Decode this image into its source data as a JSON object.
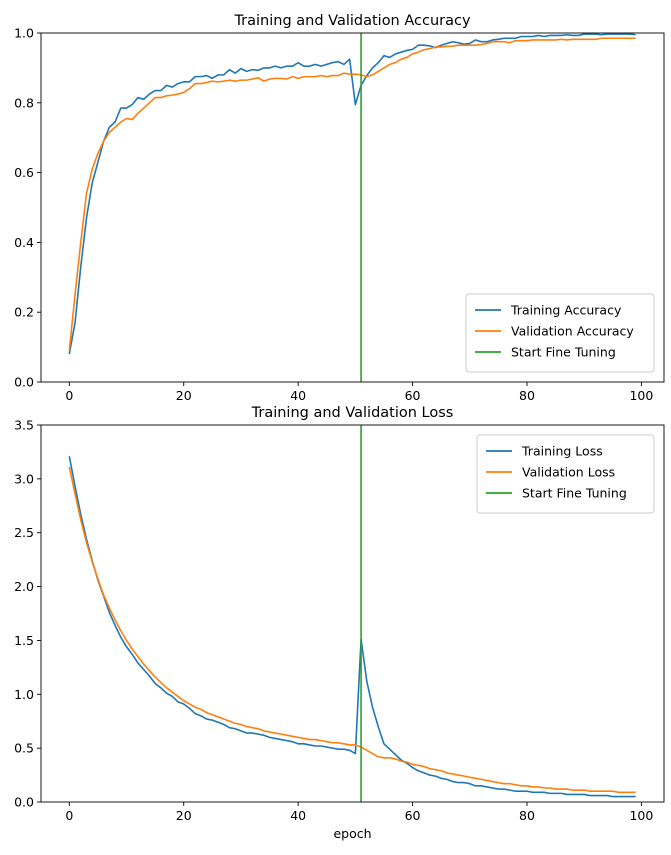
{
  "chart_data": [
    {
      "type": "line",
      "title": "Training and Validation Accuracy",
      "xlabel": "",
      "ylabel": "",
      "xlim": [
        -4.95,
        103.95
      ],
      "ylim": [
        0,
        1
      ],
      "xticks": [
        0,
        20,
        40,
        60,
        80,
        100
      ],
      "yticks": [
        0.0,
        0.2,
        0.4,
        0.6,
        0.8,
        1.0
      ],
      "ytick_labels": [
        "0.0",
        "0.2",
        "0.4",
        "0.6",
        "0.8",
        "1.0"
      ],
      "grid": false,
      "legend": "lower-right",
      "vline": {
        "name": "Start Fine Tuning",
        "x": 51,
        "color": "#2ca02c"
      },
      "series": [
        {
          "name": "Training Accuracy",
          "color": "#1f77b4",
          "values": [
            0.08,
            0.17,
            0.33,
            0.47,
            0.57,
            0.63,
            0.69,
            0.73,
            0.745,
            0.785,
            0.785,
            0.795,
            0.815,
            0.81,
            0.825,
            0.835,
            0.835,
            0.85,
            0.845,
            0.855,
            0.86,
            0.86,
            0.875,
            0.875,
            0.878,
            0.87,
            0.88,
            0.88,
            0.895,
            0.885,
            0.898,
            0.89,
            0.895,
            0.893,
            0.9,
            0.9,
            0.905,
            0.9,
            0.905,
            0.905,
            0.915,
            0.905,
            0.905,
            0.91,
            0.905,
            0.91,
            0.915,
            0.918,
            0.91,
            0.925,
            0.795,
            0.85,
            0.878,
            0.9,
            0.915,
            0.935,
            0.93,
            0.94,
            0.945,
            0.95,
            0.953,
            0.965,
            0.965,
            0.963,
            0.958,
            0.965,
            0.97,
            0.975,
            0.972,
            0.968,
            0.97,
            0.98,
            0.975,
            0.975,
            0.98,
            0.982,
            0.985,
            0.985,
            0.985,
            0.99,
            0.99,
            0.99,
            0.993,
            0.99,
            0.993,
            0.993,
            0.993,
            0.995,
            0.993,
            0.993,
            0.997,
            0.997,
            0.997,
            0.995,
            0.997,
            0.997,
            0.997,
            0.997,
            0.997,
            0.995
          ]
        },
        {
          "name": "Validation Accuracy",
          "color": "#ff7f0e",
          "values": [
            0.09,
            0.25,
            0.4,
            0.54,
            0.61,
            0.655,
            0.69,
            0.715,
            0.73,
            0.745,
            0.755,
            0.752,
            0.77,
            0.785,
            0.8,
            0.815,
            0.815,
            0.82,
            0.822,
            0.825,
            0.83,
            0.84,
            0.855,
            0.855,
            0.858,
            0.862,
            0.86,
            0.862,
            0.865,
            0.862,
            0.865,
            0.865,
            0.868,
            0.872,
            0.862,
            0.868,
            0.87,
            0.87,
            0.868,
            0.875,
            0.87,
            0.875,
            0.875,
            0.875,
            0.878,
            0.875,
            0.878,
            0.878,
            0.885,
            0.882,
            0.882,
            0.88,
            0.875,
            0.88,
            0.89,
            0.9,
            0.91,
            0.915,
            0.925,
            0.93,
            0.94,
            0.945,
            0.952,
            0.955,
            0.96,
            0.96,
            0.962,
            0.962,
            0.965,
            0.965,
            0.965,
            0.965,
            0.967,
            0.97,
            0.975,
            0.975,
            0.975,
            0.972,
            0.978,
            0.978,
            0.978,
            0.98,
            0.98,
            0.98,
            0.98,
            0.98,
            0.982,
            0.98,
            0.982,
            0.982,
            0.982,
            0.982,
            0.982,
            0.985,
            0.985,
            0.985,
            0.985,
            0.985,
            0.985,
            0.985
          ]
        }
      ]
    },
    {
      "type": "line",
      "title": "Training and Validation Loss",
      "xlabel": "epoch",
      "ylabel": "",
      "xlim": [
        -4.95,
        103.95
      ],
      "ylim": [
        0,
        3.5
      ],
      "xticks": [
        0,
        20,
        40,
        60,
        80,
        100
      ],
      "yticks": [
        0.0,
        0.5,
        1.0,
        1.5,
        2.0,
        2.5,
        3.0,
        3.5
      ],
      "ytick_labels": [
        "0.0",
        "0.5",
        "1.0",
        "1.5",
        "2.0",
        "2.5",
        "3.0",
        "3.5"
      ],
      "grid": false,
      "legend": "upper-right",
      "vline": {
        "name": "Start Fine Tuning",
        "x": 51,
        "color": "#2ca02c"
      },
      "series": [
        {
          "name": "Training Loss",
          "color": "#1f77b4",
          "values": [
            3.21,
            2.93,
            2.67,
            2.44,
            2.24,
            2.06,
            1.91,
            1.76,
            1.64,
            1.53,
            1.44,
            1.37,
            1.29,
            1.23,
            1.17,
            1.1,
            1.06,
            1.01,
            0.98,
            0.93,
            0.91,
            0.87,
            0.82,
            0.8,
            0.77,
            0.76,
            0.74,
            0.72,
            0.69,
            0.68,
            0.66,
            0.64,
            0.64,
            0.63,
            0.62,
            0.6,
            0.59,
            0.58,
            0.57,
            0.56,
            0.54,
            0.54,
            0.53,
            0.52,
            0.52,
            0.51,
            0.5,
            0.49,
            0.49,
            0.48,
            0.45,
            1.51,
            1.12,
            0.88,
            0.7,
            0.54,
            0.49,
            0.44,
            0.39,
            0.36,
            0.32,
            0.29,
            0.27,
            0.25,
            0.24,
            0.22,
            0.21,
            0.19,
            0.18,
            0.18,
            0.17,
            0.15,
            0.15,
            0.14,
            0.13,
            0.12,
            0.12,
            0.11,
            0.1,
            0.1,
            0.1,
            0.09,
            0.09,
            0.09,
            0.08,
            0.08,
            0.08,
            0.07,
            0.07,
            0.07,
            0.07,
            0.06,
            0.06,
            0.06,
            0.06,
            0.05,
            0.05,
            0.05,
            0.05,
            0.05
          ]
        },
        {
          "name": "Validation Loss",
          "color": "#ff7f0e",
          "values": [
            3.11,
            2.86,
            2.62,
            2.41,
            2.23,
            2.07,
            1.92,
            1.8,
            1.69,
            1.59,
            1.5,
            1.42,
            1.35,
            1.28,
            1.22,
            1.16,
            1.11,
            1.06,
            1.02,
            0.98,
            0.94,
            0.91,
            0.88,
            0.86,
            0.83,
            0.81,
            0.79,
            0.77,
            0.75,
            0.73,
            0.72,
            0.7,
            0.69,
            0.68,
            0.66,
            0.65,
            0.64,
            0.63,
            0.62,
            0.61,
            0.6,
            0.59,
            0.58,
            0.58,
            0.57,
            0.56,
            0.55,
            0.55,
            0.54,
            0.53,
            0.53,
            0.51,
            0.48,
            0.45,
            0.42,
            0.41,
            0.41,
            0.4,
            0.38,
            0.37,
            0.35,
            0.34,
            0.33,
            0.31,
            0.3,
            0.29,
            0.27,
            0.26,
            0.25,
            0.24,
            0.23,
            0.22,
            0.21,
            0.2,
            0.19,
            0.18,
            0.17,
            0.17,
            0.16,
            0.15,
            0.15,
            0.14,
            0.14,
            0.13,
            0.13,
            0.12,
            0.12,
            0.12,
            0.11,
            0.11,
            0.11,
            0.1,
            0.1,
            0.1,
            0.1,
            0.1,
            0.09,
            0.09,
            0.09,
            0.09
          ]
        }
      ]
    }
  ]
}
